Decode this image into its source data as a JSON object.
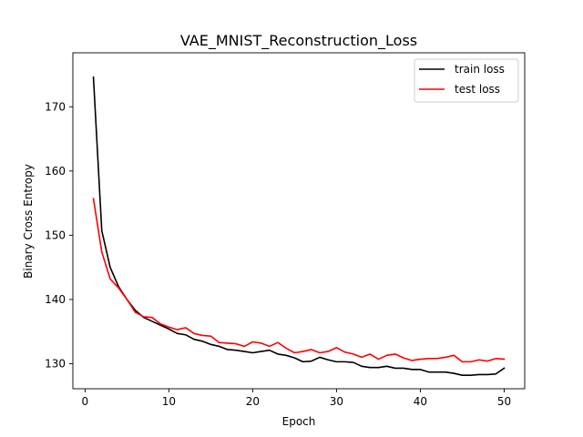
{
  "chart_data": {
    "type": "line",
    "title": "VAE_MNIST_Reconstruction_Loss",
    "xlabel": "Epoch",
    "ylabel": "Binary Cross Entropy",
    "xlim": [
      -1.45,
      52.45
    ],
    "ylim": [
      126.1,
      178.4
    ],
    "xticks": [
      0,
      10,
      20,
      30,
      40,
      50
    ],
    "yticks": [
      130,
      140,
      150,
      160,
      170
    ],
    "grid": false,
    "legend_position": "top-right",
    "x": [
      1,
      2,
      3,
      4,
      5,
      6,
      7,
      8,
      9,
      10,
      11,
      12,
      13,
      14,
      15,
      16,
      17,
      18,
      19,
      20,
      21,
      22,
      23,
      24,
      25,
      26,
      27,
      28,
      29,
      30,
      31,
      32,
      33,
      34,
      35,
      36,
      37,
      38,
      39,
      40,
      41,
      42,
      43,
      44,
      45,
      46,
      47,
      48,
      49,
      50
    ],
    "series": [
      {
        "name": "train loss",
        "color": "#000000",
        "values": [
          174.6,
          150.7,
          145.0,
          142.0,
          140.0,
          138.3,
          137.2,
          136.6,
          136.0,
          135.4,
          134.7,
          134.5,
          133.8,
          133.5,
          133.0,
          132.7,
          132.2,
          132.1,
          131.9,
          131.7,
          131.9,
          132.1,
          131.5,
          131.3,
          130.9,
          130.3,
          130.4,
          131.0,
          130.6,
          130.3,
          130.3,
          130.2,
          129.6,
          129.4,
          129.4,
          129.6,
          129.3,
          129.3,
          129.1,
          129.1,
          128.7,
          128.7,
          128.7,
          128.5,
          128.2,
          128.2,
          128.3,
          128.3,
          128.4,
          129.3
        ]
      },
      {
        "name": "test loss",
        "color": "#ff0000",
        "values": [
          155.7,
          147.4,
          143.2,
          141.8,
          140.0,
          138.0,
          137.3,
          137.2,
          136.2,
          135.7,
          135.3,
          135.6,
          134.7,
          134.4,
          134.3,
          133.3,
          133.2,
          133.1,
          132.7,
          133.4,
          133.2,
          132.7,
          133.3,
          132.4,
          131.7,
          131.9,
          132.2,
          131.7,
          131.9,
          132.5,
          131.8,
          131.5,
          131.0,
          131.5,
          130.7,
          131.3,
          131.5,
          130.9,
          130.5,
          130.7,
          130.8,
          130.8,
          131.0,
          131.3,
          130.3,
          130.3,
          130.6,
          130.4,
          130.8,
          130.7
        ]
      }
    ]
  }
}
